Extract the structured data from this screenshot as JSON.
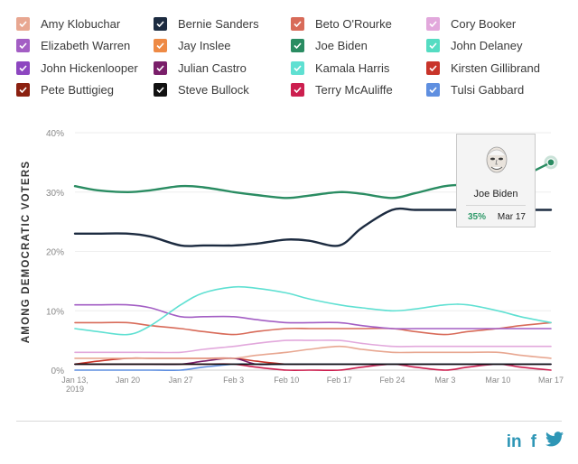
{
  "legend": [
    {
      "name": "Amy Klobuchar",
      "color": "#e8a791"
    },
    {
      "name": "Bernie Sanders",
      "color": "#1c2b40"
    },
    {
      "name": "Beto O'Rourke",
      "color": "#d86b59"
    },
    {
      "name": "Cory Booker",
      "color": "#e2a8dc"
    },
    {
      "name": "Elizabeth Warren",
      "color": "#a35ec4"
    },
    {
      "name": "Jay Inslee",
      "color": "#ee8a45"
    },
    {
      "name": "Joe Biden",
      "color": "#2a8c62"
    },
    {
      "name": "John Delaney",
      "color": "#55dcc2"
    },
    {
      "name": "John Hickenlooper",
      "color": "#8d46c0"
    },
    {
      "name": "Julian Castro",
      "color": "#7a1f6a"
    },
    {
      "name": "Kamala Harris",
      "color": "#5fe0d2"
    },
    {
      "name": "Kirsten Gillibrand",
      "color": "#c8342a"
    },
    {
      "name": "Pete Buttigieg",
      "color": "#8b2010"
    },
    {
      "name": "Steve Bullock",
      "color": "#111111"
    },
    {
      "name": "Terry McAuliffe",
      "color": "#cc1f4f"
    },
    {
      "name": "Tulsi Gabbard",
      "color": "#5f8fe0"
    }
  ],
  "chart_data": {
    "type": "line",
    "ylabel": "AMONG DEMOCRATIC VOTERS",
    "ylim": [
      0,
      40
    ],
    "yticks": [
      0,
      10,
      20,
      30,
      40
    ],
    "ytick_labels": [
      "0%",
      "10%",
      "20%",
      "30%",
      "40%"
    ],
    "x": [
      "2019-01-13",
      "2019-01-16",
      "2019-01-20",
      "2019-01-23",
      "2019-01-27",
      "2019-01-30",
      "2019-02-03",
      "2019-02-06",
      "2019-02-10",
      "2019-02-13",
      "2019-02-17",
      "2019-02-20",
      "2019-02-24",
      "2019-02-27",
      "2019-03-03",
      "2019-03-06",
      "2019-03-10",
      "2019-03-13",
      "2019-03-17"
    ],
    "xtick_labels": [
      "Jan 13, 2019",
      "Jan 20",
      "Jan 27",
      "Feb 3",
      "Feb 10",
      "Feb 17",
      "Feb 24",
      "Mar 3",
      "Mar 10",
      "Mar 17"
    ],
    "xtick_dates": [
      "2019-01-13",
      "2019-01-20",
      "2019-01-27",
      "2019-02-03",
      "2019-02-10",
      "2019-02-17",
      "2019-02-24",
      "2019-03-03",
      "2019-03-10",
      "2019-03-17"
    ],
    "series": [
      {
        "name": "Joe Biden",
        "color": "#2a8c62",
        "values": [
          31,
          30.3,
          30,
          30.3,
          31,
          30.8,
          30,
          29.5,
          29,
          29.4,
          30,
          29.7,
          29,
          29.8,
          31,
          31.2,
          31,
          32.5,
          35
        ]
      },
      {
        "name": "Bernie Sanders",
        "color": "#1c2b40",
        "values": [
          23,
          23,
          23,
          22.5,
          21,
          21,
          21,
          21.3,
          22,
          21.8,
          21,
          24,
          27,
          27,
          27,
          27,
          27,
          27,
          27
        ]
      },
      {
        "name": "Kamala Harris",
        "color": "#5fe0d2",
        "values": [
          7,
          6.5,
          6,
          7.5,
          11,
          13,
          14,
          13.8,
          13,
          12,
          11,
          10.5,
          10,
          10.3,
          11,
          11,
          10,
          9,
          8
        ]
      },
      {
        "name": "Elizabeth Warren",
        "color": "#a35ec4",
        "values": [
          11,
          11,
          11,
          10.5,
          9,
          9,
          9,
          8.5,
          8,
          8,
          8,
          7.5,
          7,
          7,
          7,
          7,
          7,
          7,
          7
        ]
      },
      {
        "name": "Beto O'Rourke",
        "color": "#d86b59",
        "values": [
          8,
          8,
          8,
          7.5,
          7,
          6.5,
          6,
          6.5,
          7,
          7,
          7,
          7,
          7,
          6.5,
          6,
          6.5,
          7,
          7.5,
          8
        ]
      },
      {
        "name": "Cory Booker",
        "color": "#e2a8dc",
        "values": [
          3,
          3,
          3,
          3,
          3,
          3.5,
          4,
          4.5,
          5,
          5,
          5,
          4.5,
          4,
          4,
          4,
          4,
          4,
          4,
          4
        ]
      },
      {
        "name": "Amy Klobuchar",
        "color": "#e8a791",
        "values": [
          2,
          2,
          2,
          2,
          2,
          2,
          2,
          2.5,
          3,
          3.5,
          4,
          3.5,
          3,
          3,
          3,
          3,
          3,
          2.5,
          2
        ]
      },
      {
        "name": "Steve Bullock",
        "color": "#111111",
        "values": [
          1,
          1,
          1,
          1,
          1,
          1,
          1,
          1,
          1,
          1,
          1,
          1,
          1,
          1,
          1,
          1,
          1,
          1,
          1
        ]
      },
      {
        "name": "Tulsi Gabbard",
        "color": "#5f8fe0",
        "values": [
          0,
          0,
          0,
          0,
          0,
          0.5,
          1,
          1,
          1,
          1,
          1,
          1,
          1,
          1,
          1,
          1,
          1,
          1,
          1
        ]
      },
      {
        "name": "Julian Castro",
        "color": "#7a1f6a",
        "values": [
          1,
          1,
          1,
          1,
          1,
          1.5,
          2,
          1,
          1,
          1,
          1,
          1,
          1,
          1,
          1,
          1,
          1,
          1,
          1
        ]
      },
      {
        "name": "Kirsten Gillibrand",
        "color": "#c8342a",
        "values": [
          1,
          1.5,
          2,
          2,
          2,
          2,
          2,
          1.5,
          1,
          1,
          1,
          1,
          1,
          1,
          1,
          1,
          1,
          1,
          1
        ]
      },
      {
        "name": "Terry McAuliffe",
        "color": "#cc1f4f",
        "values": [
          1,
          1,
          1,
          1,
          1,
          1,
          1,
          0.5,
          0,
          0,
          0,
          0.5,
          1,
          0.5,
          0,
          0.5,
          1,
          0.5,
          0
        ]
      }
    ],
    "tooltip": {
      "name": "Joe Biden",
      "value": "35%",
      "date": "Mar 17"
    }
  },
  "social": {
    "linkedin": "in",
    "facebook": "f",
    "twitter": "🐦"
  }
}
